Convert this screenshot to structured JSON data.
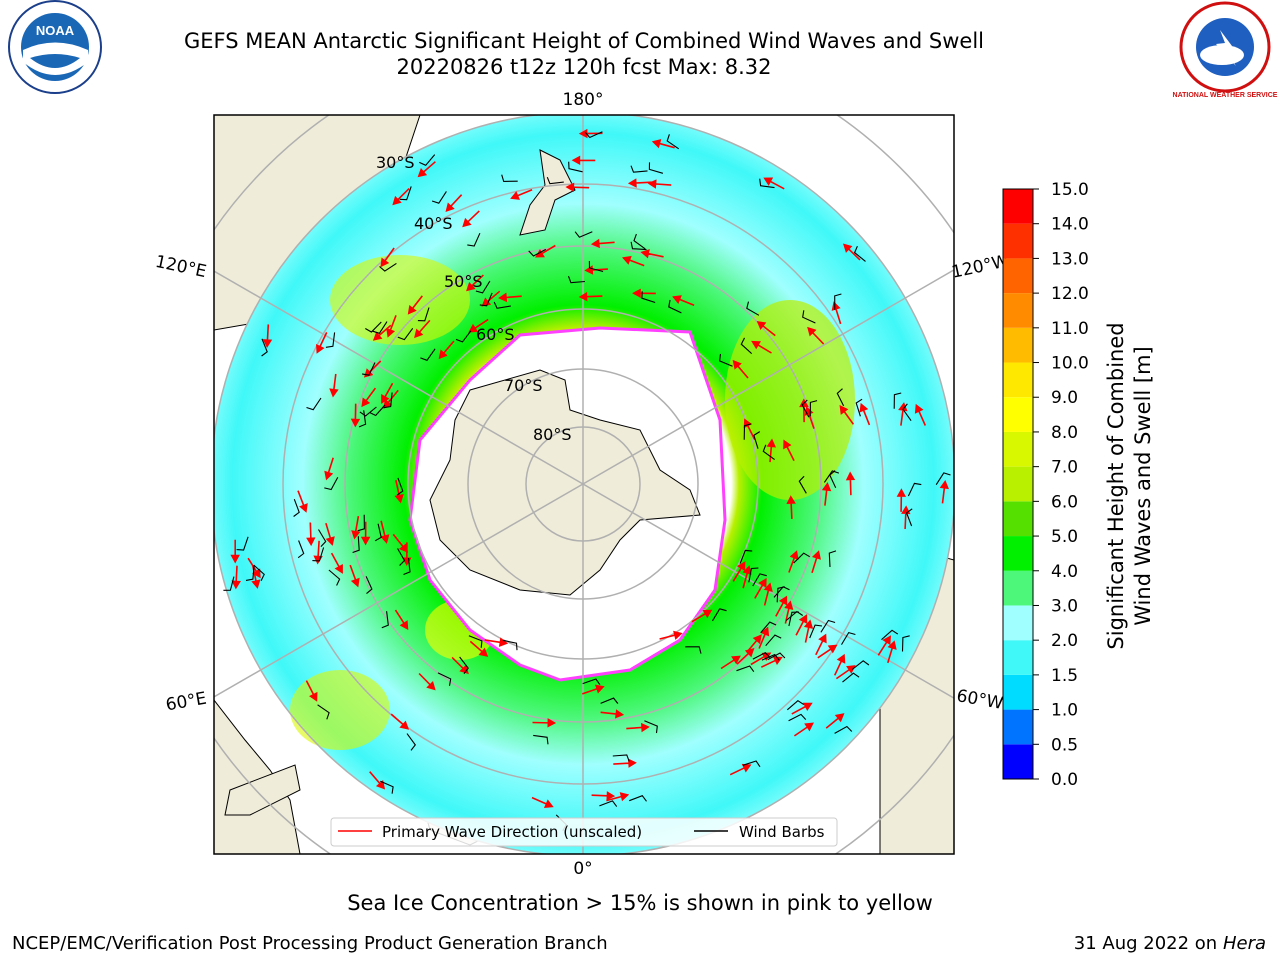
{
  "header": {
    "title_line1": "GEFS MEAN Antarctic Significant Height of Combined Wind Waves and Swell",
    "title_line2": "20220826 t12z 120h fcst   Max: 8.32"
  },
  "logos": {
    "left": {
      "icon": "noaa-logo-icon",
      "text": "NOAA"
    },
    "right": {
      "icon": "nws-logo-icon",
      "text": "NATIONAL WEATHER SERVICE"
    }
  },
  "map": {
    "projection": "south-polar-stereographic",
    "lon_labels": {
      "top": "180°",
      "bottom": "0°",
      "left_upper": "120°E",
      "left_lower": "60°E",
      "right_upper": "120°W",
      "right_lower": "60°W"
    },
    "lat_labels": [
      "30°S",
      "40°S",
      "50°S",
      "60°S",
      "70°S",
      "80°S"
    ],
    "legend": {
      "wave_direction": "Primary Wave Direction (unscaled)",
      "wind_barbs": "Wind Barbs"
    },
    "colors": {
      "land": "#efecd9",
      "ice_edge": "#ff40ff",
      "arrow": "#ff0000"
    }
  },
  "colorbar": {
    "label_line1": "Significant Height of Combined",
    "label_line2": "Wind Waves and Swell [m]",
    "ticks": [
      "0.0",
      "0.5",
      "1.0",
      "1.5",
      "2.0",
      "3.0",
      "4.0",
      "5.0",
      "6.0",
      "7.0",
      "8.0",
      "9.0",
      "10.0",
      "11.0",
      "12.0",
      "13.0",
      "14.0",
      "15.0"
    ],
    "colors": [
      "#0000ff",
      "#0073ff",
      "#00dcff",
      "#40f8f8",
      "#a0ffff",
      "#4cf77a",
      "#00f000",
      "#56e000",
      "#b8f000",
      "#d8f800",
      "#ffff00",
      "#ffe800",
      "#ffbb00",
      "#ff8c00",
      "#ff6400",
      "#ff3000",
      "#ff0000"
    ]
  },
  "footer": {
    "caption": "Sea Ice Concentration > 15% is shown in pink to yellow",
    "credit": "NCEP/EMC/Verification Post Processing Product Generation Branch",
    "date": "31 Aug 2022 on",
    "machine": "Hera"
  }
}
